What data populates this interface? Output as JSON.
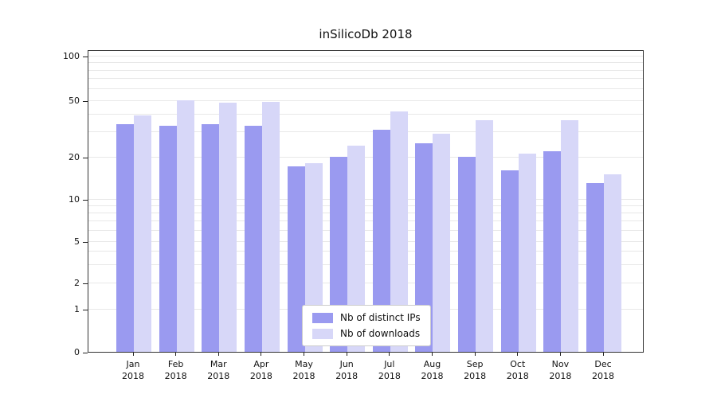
{
  "title": "inSilicoDb 2018",
  "chart_data": {
    "type": "bar",
    "title": "inSilicoDb 2018",
    "yscale": "symlog",
    "y_ticks": [
      0,
      1,
      2,
      5,
      10,
      20,
      50,
      100
    ],
    "ylim": [
      0,
      110
    ],
    "grid": "horizontal log minor gridlines, light gray",
    "legend_position": "lower center",
    "categories": [
      "Jan 2018",
      "Feb 2018",
      "Mar 2018",
      "Apr 2018",
      "May 2018",
      "Jun 2018",
      "Jul 2018",
      "Aug 2018",
      "Sep 2018",
      "Oct 2018",
      "Nov 2018",
      "Dec 2018"
    ],
    "series": [
      {
        "name": "Nb of distinct IPs",
        "color": "#9a9af0",
        "values": [
          34,
          33,
          34,
          33,
          17,
          20,
          31,
          25,
          20,
          16,
          22,
          13
        ]
      },
      {
        "name": "Nb of downloads",
        "color": "#d7d7f8",
        "values": [
          39,
          50,
          48,
          49,
          18,
          24,
          42,
          29,
          36,
          21,
          36,
          15
        ]
      }
    ]
  }
}
